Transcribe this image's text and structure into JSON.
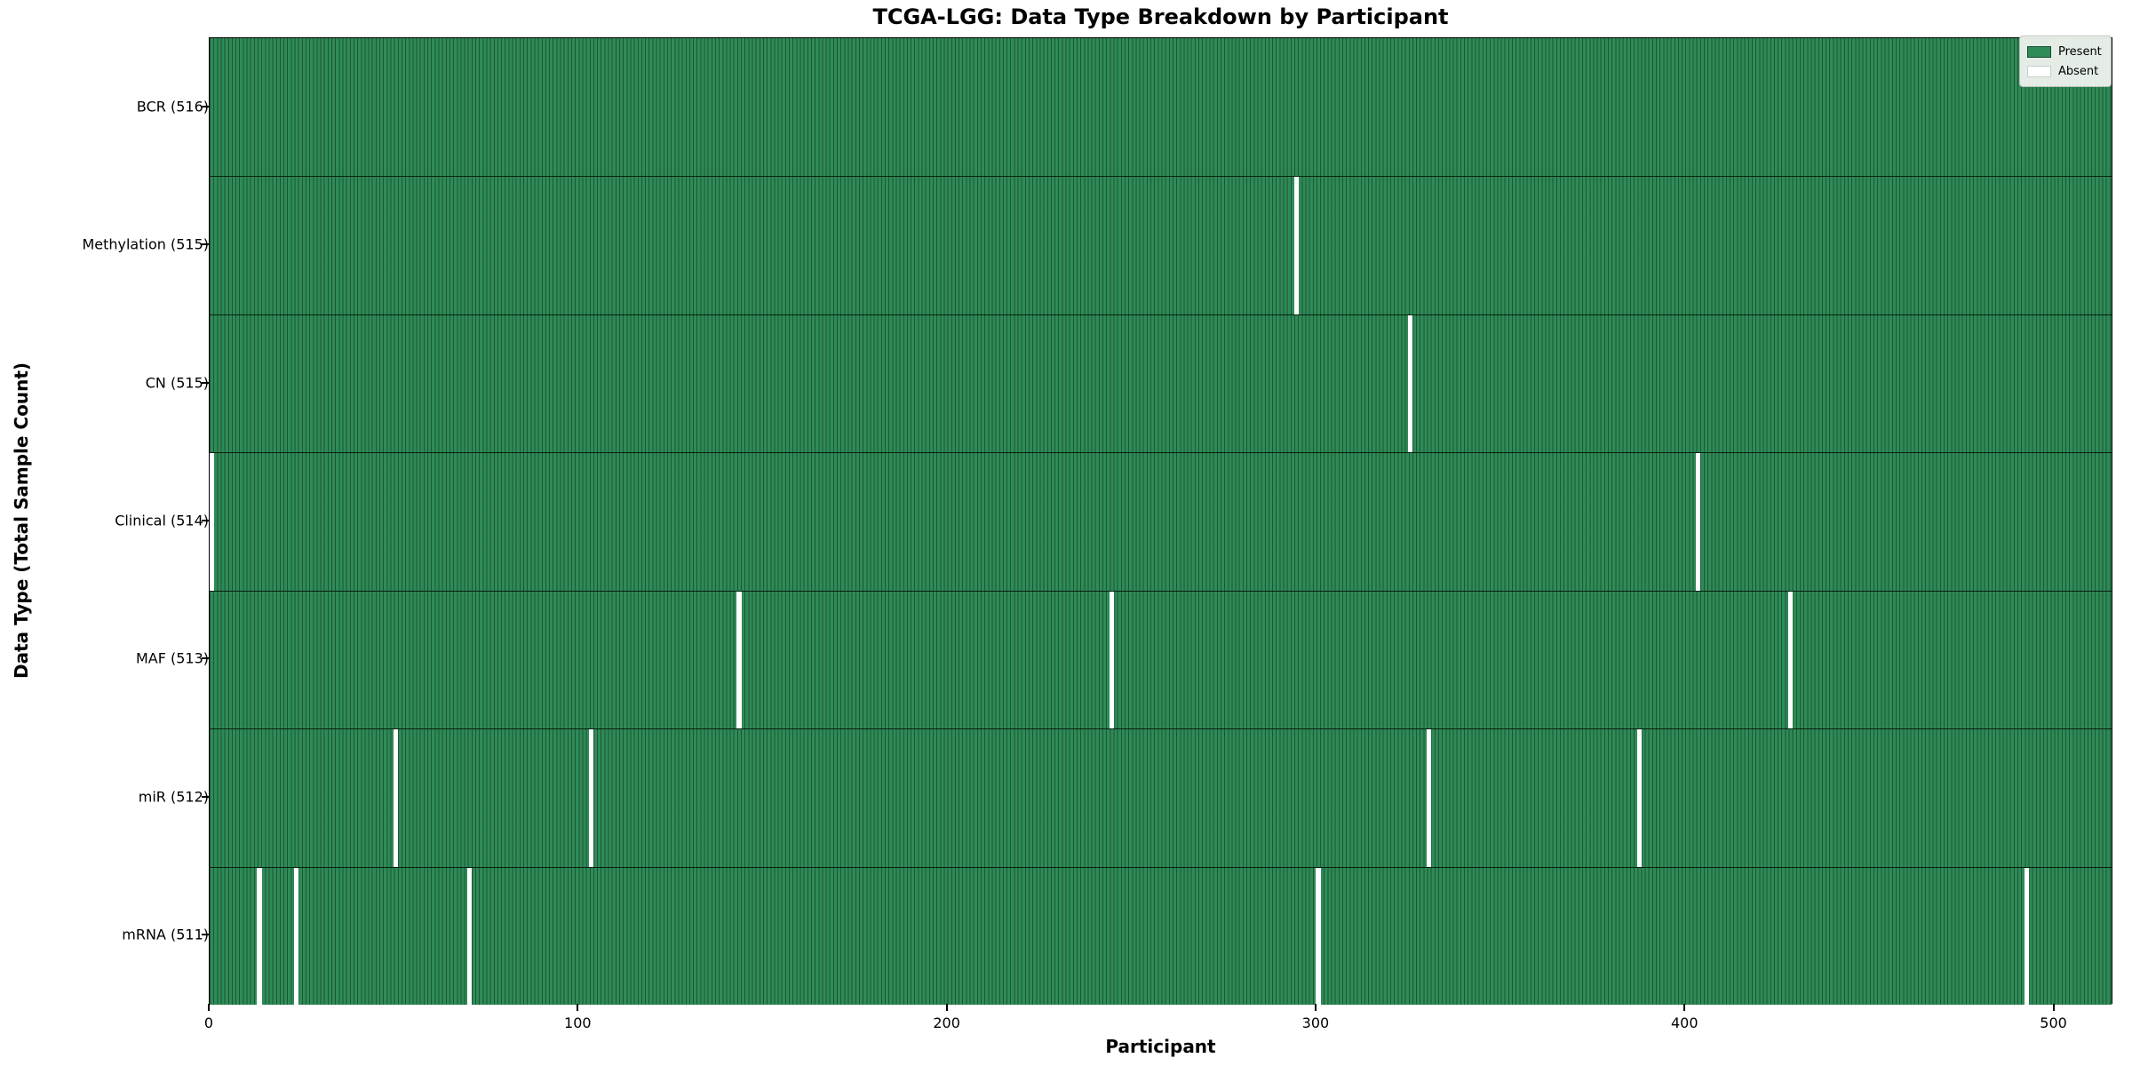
{
  "title": "TCGA-LGG: Data Type Breakdown by Participant",
  "chart_data": {
    "type": "heatmap",
    "title": "TCGA-LGG: Data Type Breakdown by Participant",
    "xlabel": "Participant",
    "ylabel": "Data Type (Total Sample Count)",
    "xlim": [
      0,
      516
    ],
    "x_ticks": [
      0,
      100,
      200,
      300,
      400,
      500
    ],
    "n_participants": 516,
    "grid": false,
    "legend": {
      "position": "upper-right",
      "entries": [
        {
          "label": "Present",
          "color": "#2e8b57"
        },
        {
          "label": "Absent",
          "color": "#ffffff"
        }
      ]
    },
    "colors": {
      "present": "#2e8b57",
      "absent": "#ffffff",
      "cell_edge": "rgba(0,0,0,0.38)",
      "row_separator": "#08210f"
    },
    "rows": [
      {
        "label": "BCR (516)",
        "total": 516,
        "absent_participants": []
      },
      {
        "label": "Methylation (515)",
        "total": 515,
        "absent_participants": [
          294
        ]
      },
      {
        "label": "CN (515)",
        "total": 515,
        "absent_participants": [
          325
        ]
      },
      {
        "label": "Clinical (514)",
        "total": 514,
        "absent_participants": [
          0,
          403
        ]
      },
      {
        "label": "MAF (513)",
        "total": 513,
        "absent_participants": [
          143,
          244,
          428
        ]
      },
      {
        "label": "miR (512)",
        "total": 512,
        "absent_participants": [
          50,
          103,
          330,
          387
        ]
      },
      {
        "label": "mRNA (511)",
        "total": 511,
        "absent_participants": [
          13,
          23,
          70,
          300,
          492
        ]
      }
    ]
  }
}
